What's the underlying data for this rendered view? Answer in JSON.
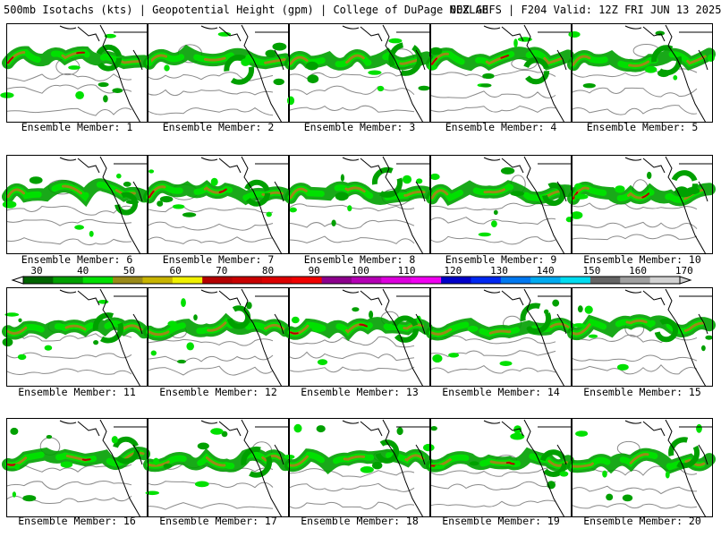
{
  "header": {
    "left": "500mb Isotachs (kts) | Geopotential Height (gpm) | College of DuPage NEXLAB",
    "right": "00Z GEFS | F204 Valid: 12Z FRI JUN 13 2025"
  },
  "colorbar": {
    "labels": [
      "30",
      "40",
      "50",
      "60",
      "70",
      "80",
      "90",
      "100",
      "110",
      "120",
      "130",
      "140",
      "150",
      "160",
      "170"
    ],
    "colors": [
      "#006400",
      "#00a000",
      "#00e000",
      "#9a8a18",
      "#c8b400",
      "#f0f000",
      "#b40000",
      "#c80000",
      "#dc0000",
      "#f00000",
      "#8c008c",
      "#b400b4",
      "#dc00dc",
      "#f000f0",
      "#0000c8",
      "#0028f0",
      "#0078f0",
      "#00aaf0",
      "#00dcf0",
      "#646464",
      "#a0a0a0",
      "#d2d2d2"
    ]
  },
  "members": [
    {
      "label": "Ensemble Member: 1"
    },
    {
      "label": "Ensemble Member: 2"
    },
    {
      "label": "Ensemble Member: 3"
    },
    {
      "label": "Ensemble Member: 4"
    },
    {
      "label": "Ensemble Member: 5"
    },
    {
      "label": "Ensemble Member: 6"
    },
    {
      "label": "Ensemble Member: 7"
    },
    {
      "label": "Ensemble Member: 8"
    },
    {
      "label": "Ensemble Member: 9"
    },
    {
      "label": "Ensemble Member: 10"
    },
    {
      "label": "Ensemble Member: 11"
    },
    {
      "label": "Ensemble Member: 12"
    },
    {
      "label": "Ensemble Member: 13"
    },
    {
      "label": "Ensemble Member: 14"
    },
    {
      "label": "Ensemble Member: 15"
    },
    {
      "label": "Ensemble Member: 16"
    },
    {
      "label": "Ensemble Member: 17"
    },
    {
      "label": "Ensemble Member: 18"
    },
    {
      "label": "Ensemble Member: 19"
    },
    {
      "label": "Ensemble Member: 20"
    }
  ]
}
